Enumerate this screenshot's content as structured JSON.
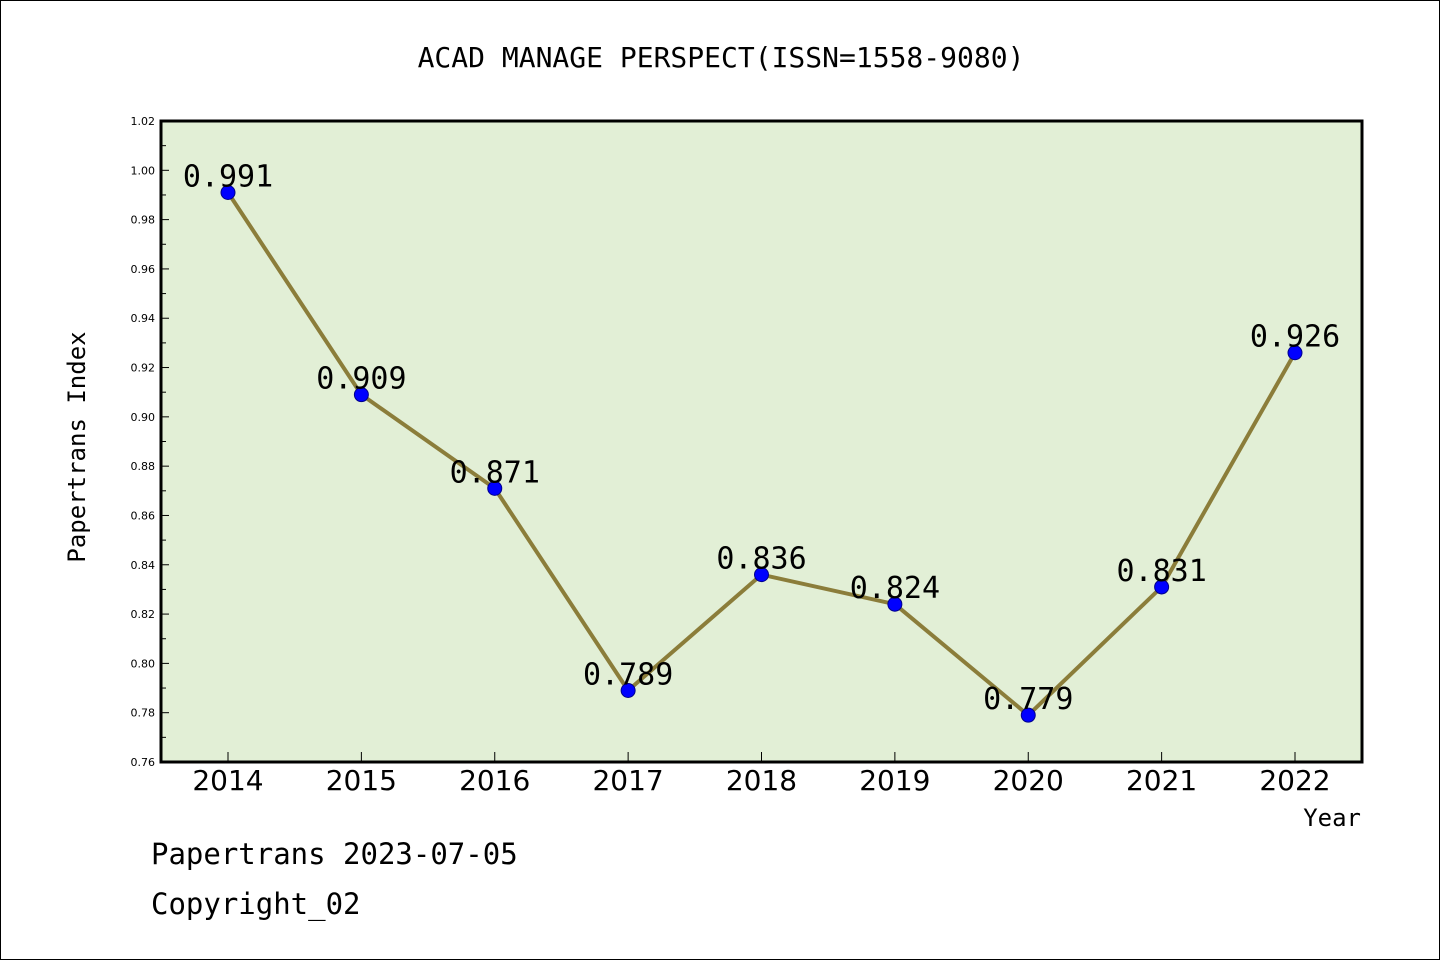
{
  "chart_data": {
    "type": "line",
    "title": "ACAD MANAGE PERSPECT(ISSN=1558-9080)",
    "xlabel": "Year",
    "ylabel": "Papertrans Index",
    "categories": [
      "2014",
      "2015",
      "2016",
      "2017",
      "2018",
      "2019",
      "2020",
      "2021",
      "2022"
    ],
    "values": [
      0.991,
      0.909,
      0.871,
      0.789,
      0.836,
      0.824,
      0.779,
      0.831,
      0.926
    ],
    "data_labels": [
      "0.991",
      "0.909",
      "0.871",
      "0.789",
      "0.836",
      "0.824",
      "0.779",
      "0.831",
      "0.926"
    ],
    "ylim": [
      0.76,
      1.02
    ],
    "yticks": [
      "0.76",
      "0.78",
      "0.80",
      "0.82",
      "0.84",
      "0.86",
      "0.88",
      "0.90",
      "0.92",
      "0.94",
      "0.96",
      "0.98",
      "1.00",
      "1.02"
    ],
    "grid": false,
    "colors": {
      "plot_background": "#e2efd6",
      "line": "#8b7d3a",
      "marker": "#0000ff",
      "marker_edge": "#00008b"
    }
  },
  "footer": {
    "line1": "Papertrans 2023-07-05",
    "line2": "Copyright_02"
  }
}
